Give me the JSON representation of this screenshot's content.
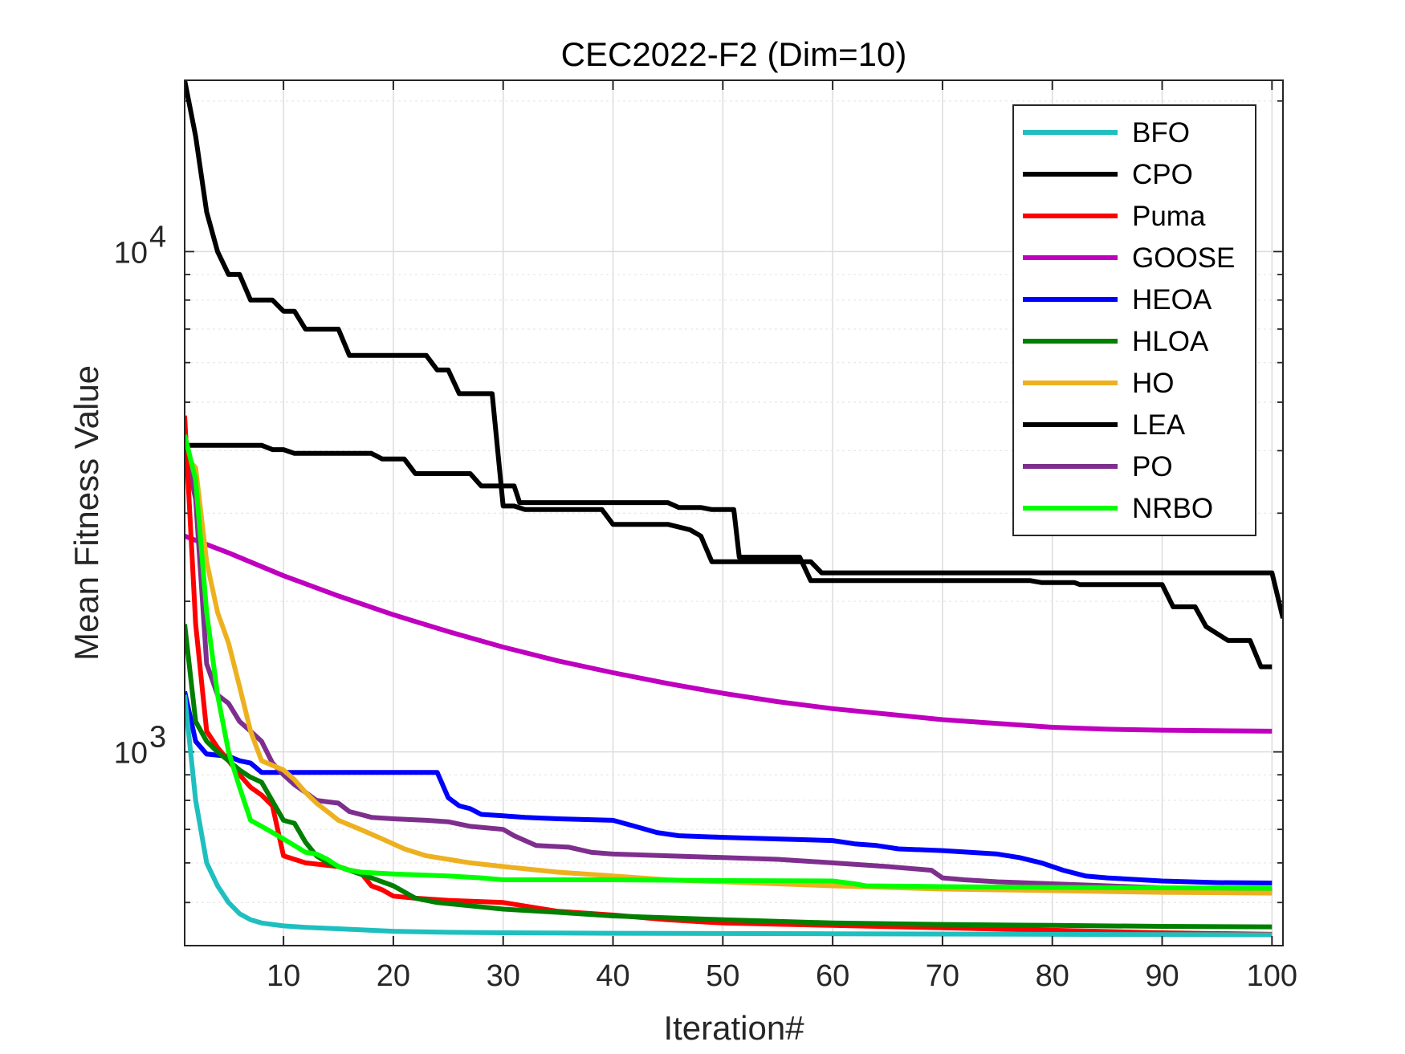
{
  "chart_data": {
    "type": "line",
    "title": "CEC2022-F2 (Dim=10)",
    "xlabel": "Iteration#",
    "ylabel": "Mean Fitness Value",
    "xlim": [
      1,
      101
    ],
    "ylim": [
      410,
      22000
    ],
    "y_scale": "log",
    "grid": true,
    "legend_position": "top-right",
    "x_ticks": [
      10,
      20,
      30,
      40,
      50,
      60,
      70,
      80,
      90,
      100
    ],
    "x_tick_labels": [
      "10",
      "20",
      "30",
      "40",
      "50",
      "60",
      "70",
      "80",
      "90",
      "100"
    ],
    "y_ticks": [
      {
        "value": 1000,
        "base": "10",
        "exp": "3"
      },
      {
        "value": 10000,
        "base": "10",
        "exp": "4"
      }
    ],
    "series": [
      {
        "name": "BFO",
        "color": "#1fbfbf",
        "points": [
          [
            1,
            1300
          ],
          [
            2,
            800
          ],
          [
            3,
            600
          ],
          [
            4,
            540
          ],
          [
            5,
            500
          ],
          [
            6,
            475
          ],
          [
            7,
            462
          ],
          [
            8,
            455
          ],
          [
            9,
            452
          ],
          [
            10,
            449
          ],
          [
            12,
            446
          ],
          [
            15,
            443
          ],
          [
            20,
            438
          ],
          [
            25,
            436
          ],
          [
            30,
            435
          ],
          [
            40,
            434
          ],
          [
            60,
            433
          ],
          [
            80,
            432
          ],
          [
            100,
            431
          ]
        ]
      },
      {
        "name": "CPO",
        "color": "#000000",
        "points": [
          [
            1,
            4100
          ],
          [
            8,
            4100
          ],
          [
            9,
            4020
          ],
          [
            10,
            4020
          ],
          [
            11,
            3950
          ],
          [
            18,
            3950
          ],
          [
            19,
            3850
          ],
          [
            21,
            3850
          ],
          [
            22,
            3600
          ],
          [
            27,
            3600
          ],
          [
            28,
            3400
          ],
          [
            31,
            3400
          ],
          [
            31.5,
            3150
          ],
          [
            38,
            3150
          ],
          [
            39,
            3150
          ],
          [
            45,
            3150
          ],
          [
            46,
            3080
          ],
          [
            48,
            3080
          ],
          [
            49,
            3050
          ],
          [
            51,
            3050
          ],
          [
            51.5,
            2450
          ],
          [
            57,
            2450
          ],
          [
            58,
            2200
          ],
          [
            78,
            2200
          ],
          [
            79,
            2180
          ],
          [
            82,
            2180
          ],
          [
            82.5,
            2160
          ],
          [
            90,
            2160
          ],
          [
            91,
            1950
          ],
          [
            93,
            1950
          ],
          [
            94,
            1780
          ],
          [
            96,
            1670
          ],
          [
            98,
            1670
          ],
          [
            99,
            1480
          ],
          [
            100,
            1480
          ]
        ]
      },
      {
        "name": "Puma",
        "color": "#ff0000",
        "points": [
          [
            1,
            4700
          ],
          [
            2,
            1800
          ],
          [
            3,
            1100
          ],
          [
            4,
            1020
          ],
          [
            5,
            960
          ],
          [
            6,
            900
          ],
          [
            7,
            850
          ],
          [
            8,
            820
          ],
          [
            9,
            780
          ],
          [
            10,
            620
          ],
          [
            11,
            610
          ],
          [
            12,
            600
          ],
          [
            15,
            590
          ],
          [
            16,
            580
          ],
          [
            17,
            575
          ],
          [
            18,
            540
          ],
          [
            19,
            530
          ],
          [
            20,
            515
          ],
          [
            22,
            510
          ],
          [
            25,
            505
          ],
          [
            30,
            500
          ],
          [
            35,
            480
          ],
          [
            40,
            472
          ],
          [
            45,
            462
          ],
          [
            50,
            455
          ],
          [
            60,
            450
          ],
          [
            70,
            445
          ],
          [
            80,
            440
          ],
          [
            90,
            435
          ],
          [
            100,
            432
          ]
        ]
      },
      {
        "name": "GOOSE",
        "color": "#bf00bf",
        "points": [
          [
            1,
            2700
          ],
          [
            5,
            2500
          ],
          [
            10,
            2250
          ],
          [
            15,
            2050
          ],
          [
            20,
            1880
          ],
          [
            25,
            1740
          ],
          [
            30,
            1620
          ],
          [
            35,
            1520
          ],
          [
            40,
            1440
          ],
          [
            45,
            1370
          ],
          [
            50,
            1310
          ],
          [
            55,
            1260
          ],
          [
            60,
            1220
          ],
          [
            65,
            1190
          ],
          [
            70,
            1160
          ],
          [
            75,
            1140
          ],
          [
            80,
            1120
          ],
          [
            85,
            1110
          ],
          [
            90,
            1105
          ],
          [
            100,
            1100
          ]
        ]
      },
      {
        "name": "HEOA",
        "color": "#0000ff",
        "points": [
          [
            1,
            1320
          ],
          [
            2,
            1050
          ],
          [
            3,
            990
          ],
          [
            5,
            980
          ],
          [
            6,
            960
          ],
          [
            7,
            950
          ],
          [
            8,
            910
          ],
          [
            24,
            910
          ],
          [
            25,
            810
          ],
          [
            26,
            780
          ],
          [
            27,
            770
          ],
          [
            28,
            750
          ],
          [
            30,
            745
          ],
          [
            32,
            740
          ],
          [
            35,
            735
          ],
          [
            40,
            730
          ],
          [
            42,
            710
          ],
          [
            44,
            690
          ],
          [
            46,
            680
          ],
          [
            50,
            675
          ],
          [
            55,
            670
          ],
          [
            60,
            665
          ],
          [
            62,
            655
          ],
          [
            64,
            650
          ],
          [
            66,
            640
          ],
          [
            70,
            635
          ],
          [
            75,
            625
          ],
          [
            77,
            615
          ],
          [
            79,
            600
          ],
          [
            81,
            580
          ],
          [
            83,
            565
          ],
          [
            85,
            560
          ],
          [
            90,
            552
          ],
          [
            95,
            548
          ],
          [
            100,
            547
          ]
        ]
      },
      {
        "name": "HLOA",
        "color": "#007f00",
        "points": [
          [
            1,
            1800
          ],
          [
            2,
            1150
          ],
          [
            3,
            1050
          ],
          [
            4,
            1000
          ],
          [
            5,
            960
          ],
          [
            6,
            920
          ],
          [
            7,
            890
          ],
          [
            8,
            870
          ],
          [
            10,
            730
          ],
          [
            11,
            720
          ],
          [
            12,
            660
          ],
          [
            13,
            620
          ],
          [
            14,
            600
          ],
          [
            16,
            580
          ],
          [
            18,
            560
          ],
          [
            20,
            540
          ],
          [
            22,
            510
          ],
          [
            24,
            500
          ],
          [
            26,
            495
          ],
          [
            30,
            485
          ],
          [
            35,
            478
          ],
          [
            40,
            470
          ],
          [
            50,
            462
          ],
          [
            60,
            455
          ],
          [
            70,
            452
          ],
          [
            80,
            450
          ],
          [
            90,
            448
          ],
          [
            100,
            447
          ]
        ]
      },
      {
        "name": "HO",
        "color": "#edb120",
        "points": [
          [
            1,
            3900
          ],
          [
            2,
            3700
          ],
          [
            3,
            2400
          ],
          [
            4,
            1900
          ],
          [
            5,
            1650
          ],
          [
            6,
            1350
          ],
          [
            7,
            1100
          ],
          [
            8,
            960
          ],
          [
            10,
            920
          ],
          [
            11,
            880
          ],
          [
            12,
            830
          ],
          [
            13,
            790
          ],
          [
            14,
            760
          ],
          [
            15,
            730
          ],
          [
            17,
            700
          ],
          [
            19,
            670
          ],
          [
            21,
            640
          ],
          [
            23,
            620
          ],
          [
            25,
            610
          ],
          [
            27,
            600
          ],
          [
            30,
            590
          ],
          [
            35,
            575
          ],
          [
            40,
            565
          ],
          [
            45,
            555
          ],
          [
            50,
            550
          ],
          [
            55,
            545
          ],
          [
            60,
            540
          ],
          [
            70,
            532
          ],
          [
            80,
            528
          ],
          [
            90,
            524
          ],
          [
            100,
            522
          ]
        ]
      },
      {
        "name": "LEA",
        "color": "#000000",
        "points": [
          [
            1,
            22000
          ],
          [
            2,
            17000
          ],
          [
            3,
            12000
          ],
          [
            4,
            10000
          ],
          [
            5,
            9000
          ],
          [
            6,
            9000
          ],
          [
            7,
            8000
          ],
          [
            9,
            8000
          ],
          [
            10,
            7600
          ],
          [
            11,
            7600
          ],
          [
            12,
            7000
          ],
          [
            15,
            7000
          ],
          [
            16,
            6200
          ],
          [
            23,
            6200
          ],
          [
            24,
            5800
          ],
          [
            25,
            5800
          ],
          [
            26,
            5200
          ],
          [
            29,
            5200
          ],
          [
            30,
            3100
          ],
          [
            31,
            3100
          ],
          [
            32,
            3050
          ],
          [
            39,
            3050
          ],
          [
            40,
            2850
          ],
          [
            45,
            2850
          ],
          [
            47,
            2780
          ],
          [
            48,
            2700
          ],
          [
            49,
            2400
          ],
          [
            51,
            2400
          ],
          [
            52,
            2400
          ],
          [
            58,
            2400
          ],
          [
            59,
            2280
          ],
          [
            100,
            2280
          ],
          [
            101,
            1850
          ]
        ]
      },
      {
        "name": "PO",
        "color": "#7e2f8e",
        "points": [
          [
            1,
            4000
          ],
          [
            2,
            3200
          ],
          [
            3,
            1500
          ],
          [
            4,
            1300
          ],
          [
            5,
            1250
          ],
          [
            6,
            1150
          ],
          [
            7,
            1100
          ],
          [
            8,
            1050
          ],
          [
            9,
            950
          ],
          [
            10,
            900
          ],
          [
            11,
            860
          ],
          [
            12,
            830
          ],
          [
            13,
            800
          ],
          [
            15,
            790
          ],
          [
            16,
            760
          ],
          [
            17,
            750
          ],
          [
            18,
            740
          ],
          [
            20,
            735
          ],
          [
            23,
            730
          ],
          [
            25,
            725
          ],
          [
            27,
            710
          ],
          [
            30,
            700
          ],
          [
            31,
            680
          ],
          [
            33,
            650
          ],
          [
            36,
            645
          ],
          [
            38,
            630
          ],
          [
            40,
            625
          ],
          [
            45,
            620
          ],
          [
            50,
            615
          ],
          [
            55,
            610
          ],
          [
            60,
            600
          ],
          [
            65,
            590
          ],
          [
            69,
            580
          ],
          [
            70,
            560
          ],
          [
            72,
            555
          ],
          [
            75,
            550
          ],
          [
            80,
            545
          ],
          [
            85,
            540
          ],
          [
            90,
            535
          ],
          [
            95,
            532
          ],
          [
            100,
            530
          ]
        ]
      },
      {
        "name": "NRBO",
        "color": "#00ff00",
        "points": [
          [
            1,
            4300
          ],
          [
            2,
            3500
          ],
          [
            3,
            1900
          ],
          [
            4,
            1300
          ],
          [
            5,
            1000
          ],
          [
            6,
            850
          ],
          [
            7,
            730
          ],
          [
            8,
            710
          ],
          [
            9,
            690
          ],
          [
            10,
            670
          ],
          [
            11,
            650
          ],
          [
            12,
            630
          ],
          [
            13,
            625
          ],
          [
            14,
            610
          ],
          [
            15,
            590
          ],
          [
            16,
            580
          ],
          [
            17,
            575
          ],
          [
            20,
            570
          ],
          [
            25,
            565
          ],
          [
            28,
            560
          ],
          [
            30,
            555
          ],
          [
            40,
            555
          ],
          [
            50,
            553
          ],
          [
            60,
            552
          ],
          [
            62,
            545
          ],
          [
            63,
            540
          ],
          [
            70,
            538
          ],
          [
            80,
            536
          ],
          [
            90,
            535
          ],
          [
            100,
            534
          ]
        ]
      }
    ],
    "legend_order": [
      "BFO",
      "CPO",
      "Puma",
      "GOOSE",
      "HEOA",
      "HLOA",
      "HO",
      "LEA",
      "PO",
      "NRBO"
    ]
  }
}
